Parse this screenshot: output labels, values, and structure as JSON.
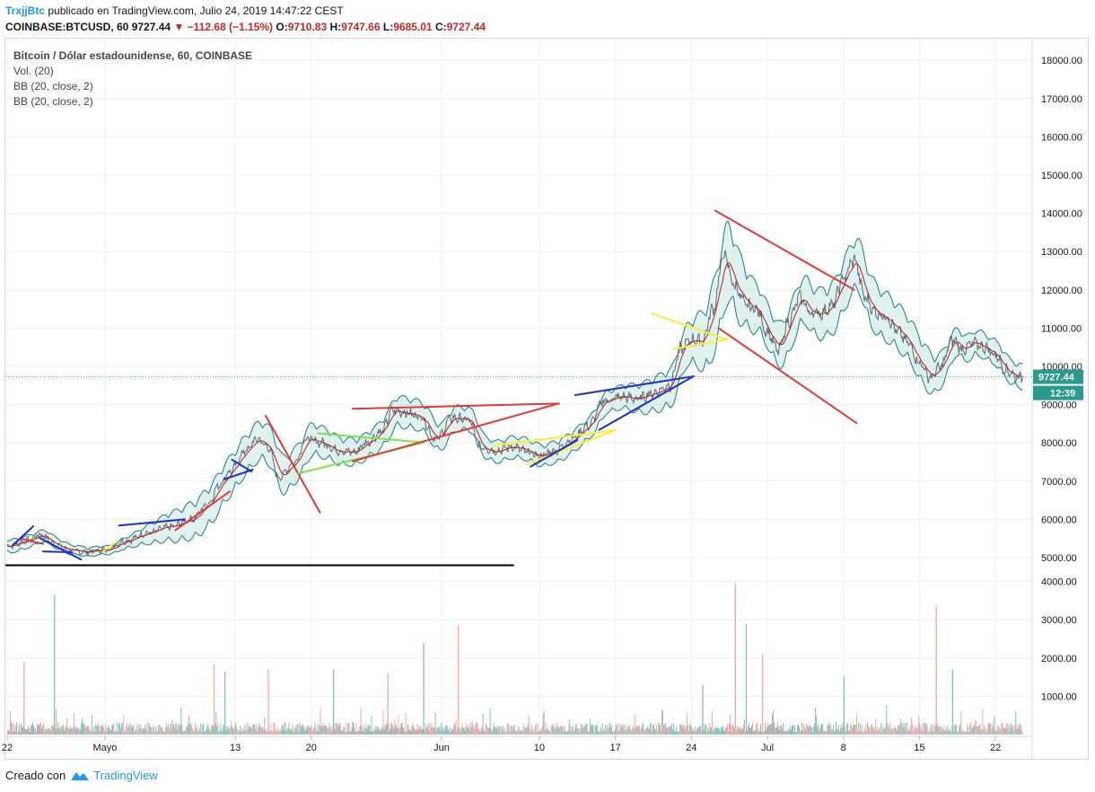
{
  "header": {
    "author": "TrxjjBtc",
    "published": "publicado en TradingView.com, Julio 24, 2019 14:47:22 CEST",
    "symbol": "COINBASE:BTCUSD, 60",
    "last": "9727.44",
    "change": "▼ −112.68 (−1.15%)",
    "o_label": "O:",
    "o": "9710.83",
    "h_label": "H:",
    "h": "9747.66",
    "l_label": "L:",
    "l": "9685.01",
    "c_label": "C:",
    "c": "9727.44"
  },
  "legend": {
    "title": "Bitcoin / Dólar estadounidense, 60, COINBASE",
    "vol": "Vol. (20)",
    "bb1": "BB (20, close, 2)",
    "bb2": "BB (20, close, 2)"
  },
  "price_badge": "9727.44",
  "time_badge": "12:39",
  "footer": {
    "created": "Creado con",
    "brand": "TradingView"
  },
  "colors": {
    "price_line": "#5d6b73",
    "band": "#1b7c7f",
    "basis": "#b71c1c",
    "red": "#e53935",
    "blue": "#1e2fd1",
    "green": "#7fe34a",
    "yellow": "#ffee33",
    "black": "#000000",
    "vol_up": "#7fc3bd",
    "vol_down": "#f2a7a3",
    "badge": "#2a9a8e"
  },
  "chart_data": {
    "type": "line",
    "title": "Bitcoin / Dólar estadounidense, 60, COINBASE",
    "y_ticks": [
      18000,
      17000,
      16000,
      15000,
      14000,
      13000,
      12000,
      11000,
      10000,
      9000,
      8000,
      7000,
      6000,
      5000
    ],
    "y_tick_labels": [
      "18000.00",
      "17000.00",
      "16000.00",
      "15000.00",
      "14000.00",
      "13000.00",
      "12000.00",
      "11000.00",
      "10000.00",
      "9000.00",
      "8000.00",
      "7000.00",
      "6000.00",
      "5000.00"
    ],
    "vol_ticks": [
      4000,
      3000,
      2000,
      1000
    ],
    "vol_tick_labels": [
      "4000.00",
      "3000.00",
      "2000.00",
      "1000.00"
    ],
    "ylim": [
      4700,
      18500
    ],
    "x_range_days": [
      0,
      93.5
    ],
    "x_ticks": [
      {
        "day": 0,
        "label": "22"
      },
      {
        "day": 9,
        "label": "Mayo"
      },
      {
        "day": 21,
        "label": "13"
      },
      {
        "day": 28,
        "label": "20"
      },
      {
        "day": 40,
        "label": "Jun"
      },
      {
        "day": 49,
        "label": "10"
      },
      {
        "day": 56,
        "label": "17"
      },
      {
        "day": 63,
        "label": "24"
      },
      {
        "day": 70,
        "label": "Jul"
      },
      {
        "day": 77,
        "label": "8"
      },
      {
        "day": 84,
        "label": "15"
      },
      {
        "day": 91,
        "label": "22"
      }
    ],
    "price_anchors": [
      [
        0,
        5300
      ],
      [
        2,
        5450
      ],
      [
        3,
        5600
      ],
      [
        4.5,
        5350
      ],
      [
        5.5,
        5200
      ],
      [
        7,
        5150
      ],
      [
        9,
        5200
      ],
      [
        11,
        5450
      ],
      [
        13,
        5650
      ],
      [
        15,
        5800
      ],
      [
        17,
        6000
      ],
      [
        18.5,
        6400
      ],
      [
        19.5,
        6900
      ],
      [
        20.5,
        7250
      ],
      [
        22,
        7800
      ],
      [
        23,
        8100
      ],
      [
        24,
        7900
      ],
      [
        25,
        7100
      ],
      [
        26.5,
        7500
      ],
      [
        27.5,
        8100
      ],
      [
        29,
        8000
      ],
      [
        30.5,
        7800
      ],
      [
        32,
        7750
      ],
      [
        33,
        8000
      ],
      [
        34.5,
        8300
      ],
      [
        35.5,
        8850
      ],
      [
        36.5,
        8800
      ],
      [
        38,
        8700
      ],
      [
        39.5,
        8100
      ],
      [
        41,
        8650
      ],
      [
        42.5,
        8600
      ],
      [
        43.5,
        7900
      ],
      [
        45,
        7800
      ],
      [
        46.5,
        7900
      ],
      [
        48,
        7750
      ],
      [
        49,
        7650
      ],
      [
        50.5,
        7800
      ],
      [
        52,
        8100
      ],
      [
        53.5,
        8450
      ],
      [
        55,
        9100
      ],
      [
        56.5,
        9200
      ],
      [
        58,
        9150
      ],
      [
        59.5,
        9300
      ],
      [
        61,
        9500
      ],
      [
        62,
        10450
      ],
      [
        63,
        10700
      ],
      [
        64,
        10650
      ],
      [
        65,
        11500
      ],
      [
        66,
        12900
      ],
      [
        67,
        12100
      ],
      [
        68,
        11600
      ],
      [
        69,
        11500
      ],
      [
        70,
        10900
      ],
      [
        71,
        10400
      ],
      [
        72,
        11200
      ],
      [
        73,
        11800
      ],
      [
        74,
        11400
      ],
      [
        75,
        11400
      ],
      [
        76,
        11600
      ],
      [
        77,
        12300
      ],
      [
        78,
        12800
      ],
      [
        79,
        11800
      ],
      [
        80,
        11400
      ],
      [
        81,
        11300
      ],
      [
        82,
        10900
      ],
      [
        83,
        10600
      ],
      [
        84,
        10100
      ],
      [
        85,
        9700
      ],
      [
        86,
        10000
      ],
      [
        87,
        10700
      ],
      [
        88,
        10450
      ],
      [
        89,
        10600
      ],
      [
        90,
        10500
      ],
      [
        91,
        10300
      ],
      [
        92,
        9900
      ],
      [
        93,
        9727
      ]
    ],
    "bb_halfwidth_anchors": [
      [
        0,
        150
      ],
      [
        9,
        100
      ],
      [
        19,
        450
      ],
      [
        23,
        450
      ],
      [
        33,
        300
      ],
      [
        36,
        350
      ],
      [
        45,
        250
      ],
      [
        55,
        250
      ],
      [
        62,
        450
      ],
      [
        66,
        900
      ],
      [
        70,
        500
      ],
      [
        78,
        600
      ],
      [
        84,
        500
      ],
      [
        88,
        300
      ],
      [
        93,
        280
      ]
    ],
    "volume_spikes": [
      [
        1.5,
        1900
      ],
      [
        4.3,
        3650
      ],
      [
        19,
        1850
      ],
      [
        20,
        1650
      ],
      [
        24,
        1700
      ],
      [
        30,
        1700
      ],
      [
        35,
        1600
      ],
      [
        38.3,
        2400
      ],
      [
        41.5,
        2850
      ],
      [
        64,
        1300
      ],
      [
        67,
        3950
      ],
      [
        68,
        2900
      ],
      [
        69.5,
        2100
      ],
      [
        77,
        1500
      ],
      [
        85.5,
        3350
      ],
      [
        87,
        1700
      ]
    ],
    "annotations": [
      {
        "color": "red",
        "width": 2,
        "from": [
          1.2,
          5500
        ],
        "to": [
          3.3,
          5360
        ]
      },
      {
        "color": "blue",
        "width": 2,
        "from": [
          0.5,
          5320
        ],
        "to": [
          2.4,
          5820
        ]
      },
      {
        "color": "blue",
        "width": 2,
        "from": [
          3,
          5510
        ],
        "to": [
          6.8,
          4950
        ]
      },
      {
        "color": "blue",
        "width": 2,
        "from": [
          3.3,
          5160
        ],
        "to": [
          6,
          5140
        ]
      },
      {
        "color": "yellow",
        "width": 2,
        "from": [
          8.8,
          5150
        ],
        "to": [
          10,
          5420
        ]
      },
      {
        "color": "blue",
        "width": 2,
        "from": [
          10.3,
          5840
        ],
        "to": [
          16.3,
          6000
        ]
      },
      {
        "color": "red",
        "width": 2,
        "from": [
          15.5,
          5720
        ],
        "to": [
          20.5,
          6730
        ]
      },
      {
        "color": "blue",
        "width": 2,
        "from": [
          20,
          7050
        ],
        "to": [
          22.6,
          7300
        ]
      },
      {
        "color": "blue",
        "width": 2,
        "from": [
          20.7,
          7560
        ],
        "to": [
          22.5,
          7250
        ]
      },
      {
        "color": "red",
        "width": 2,
        "from": [
          23.8,
          8710
        ],
        "to": [
          28.8,
          6180
        ]
      },
      {
        "color": "green",
        "width": 2,
        "from": [
          28.6,
          8250
        ],
        "to": [
          38.4,
          8010
        ]
      },
      {
        "color": "green",
        "width": 2,
        "from": [
          26.8,
          7200
        ],
        "to": [
          38.4,
          8010
        ]
      },
      {
        "color": "red",
        "width": 2,
        "from": [
          31.8,
          7520
        ],
        "to": [
          50.8,
          9030
        ]
      },
      {
        "color": "red",
        "width": 2,
        "from": [
          31.8,
          8890
        ],
        "to": [
          50.8,
          9030
        ]
      },
      {
        "color": "yellow",
        "width": 2,
        "from": [
          44.8,
          7930
        ],
        "to": [
          56,
          8330
        ]
      },
      {
        "color": "yellow",
        "width": 2,
        "from": [
          47.8,
          7440
        ],
        "to": [
          56,
          8330
        ]
      },
      {
        "color": "blue",
        "width": 2,
        "from": [
          48.2,
          7380
        ],
        "to": [
          52.5,
          8070
        ]
      },
      {
        "color": "blue",
        "width": 2,
        "from": [
          52.3,
          9250
        ],
        "to": [
          63.2,
          9740
        ]
      },
      {
        "color": "blue",
        "width": 2,
        "from": [
          54.5,
          8340
        ],
        "to": [
          63.2,
          9740
        ]
      },
      {
        "color": "yellow",
        "width": 2,
        "from": [
          59.4,
          11380
        ],
        "to": [
          66.3,
          10700
        ]
      },
      {
        "color": "yellow",
        "width": 2,
        "from": [
          61.3,
          10450
        ],
        "to": [
          66.3,
          10700
        ]
      },
      {
        "color": "red",
        "width": 2,
        "from": [
          65.2,
          14070
        ],
        "to": [
          78,
          12000
        ]
      },
      {
        "color": "red",
        "width": 2,
        "from": [
          65.5,
          11000
        ],
        "to": [
          78.2,
          8520
        ]
      },
      {
        "color": "black",
        "width": 2,
        "from": [
          -0.1,
          4800
        ],
        "to": [
          46.6,
          4800
        ]
      }
    ]
  }
}
